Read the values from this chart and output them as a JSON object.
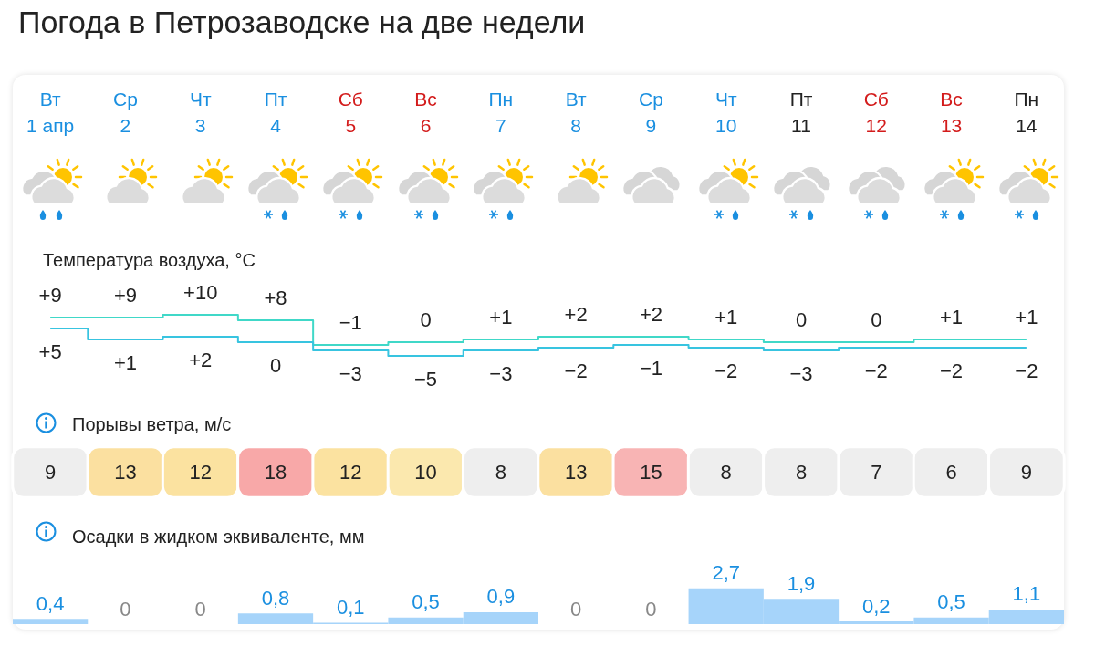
{
  "chart_data": [
    {
      "type": "step",
      "title": "Погода в Петрозаводске на две недели",
      "subtitle": "Температура воздуха, °C",
      "categories": [
        "Вт\n1 апр",
        "Ср\n2",
        "Чт\n3",
        "Пт\n4",
        "Сб\n5",
        "Вс\n6",
        "Пн\n7",
        "Вт\n8",
        "Ср\n9",
        "Чт\n10",
        "Пт\n11",
        "Сб\n12",
        "Вс\n13",
        "Пн\n14"
      ],
      "series": [
        {
          "color": "#40d8c8",
          "values": [
            9,
            9,
            10,
            8,
            -1,
            0,
            1,
            2,
            2,
            1,
            0,
            0,
            1,
            1
          ],
          "value_labels": [
            "+9",
            "+9",
            "+10",
            "+8",
            "−1",
            "0",
            "+1",
            "+2",
            "+2",
            "+1",
            "0",
            "0",
            "+1",
            "+1"
          ]
        },
        {
          "color": "#38c4e0",
          "values": [
            5,
            1,
            2,
            0,
            -3,
            -5,
            -3,
            -2,
            -1,
            -2,
            -3,
            -2,
            -2,
            -2
          ],
          "value_labels": [
            "+5",
            "+1",
            "+2",
            "0",
            "−3",
            "−5",
            "−3",
            "−2",
            "−1",
            "−2",
            "−3",
            "−2",
            "−2",
            "−2"
          ]
        }
      ],
      "marker": "none"
    },
    {
      "type": "heatmap",
      "title": "Порывы ветра, м/с",
      "categories": [
        null,
        null,
        null,
        null,
        null,
        null,
        null,
        null,
        null,
        null,
        null,
        null,
        null,
        null
      ],
      "y_categories": [
        null
      ],
      "cells": [
        [
          9,
          13,
          12,
          18,
          12,
          10,
          8,
          13,
          15,
          8,
          8,
          7,
          6,
          9
        ]
      ],
      "data_labels": true
    },
    {
      "type": "bar",
      "title": "Осадки в жидком эквиваленте, мм",
      "categories": [
        null,
        null,
        null,
        null,
        null,
        null,
        null,
        null,
        null,
        null,
        null,
        null,
        null,
        null
      ],
      "values": [
        0.4,
        0,
        0,
        0.8,
        0.1,
        0.5,
        0.9,
        0,
        0,
        2.7,
        1.9,
        0.2,
        0.5,
        1.1
      ],
      "value_labels": [
        "0,4",
        "0",
        "0",
        "0,8",
        "0,1",
        "0,5",
        "0,9",
        "0",
        "0",
        "2,7",
        "1,9",
        "0,2",
        "0,5",
        "1,1"
      ],
      "color": "#a6d4fa"
    }
  ]
}
